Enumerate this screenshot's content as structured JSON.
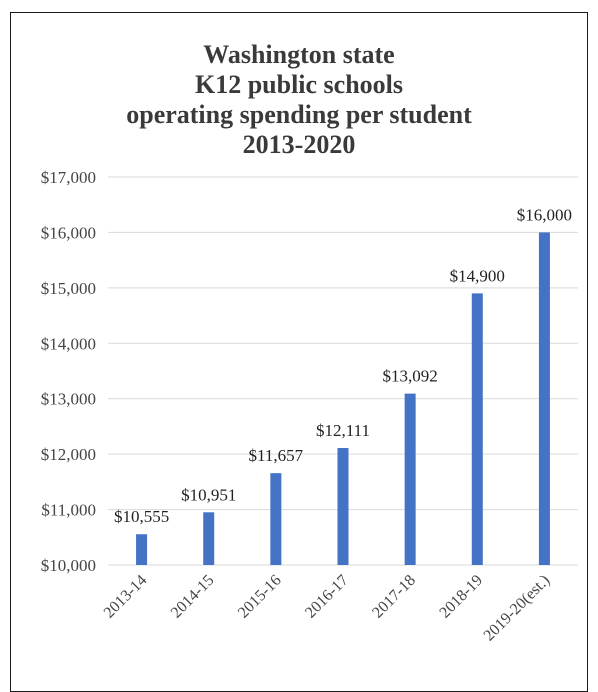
{
  "chart_data": {
    "type": "bar",
    "title_lines": [
      "Washington state",
      "K12 public schools",
      "operating spending per student",
      "2013-2020"
    ],
    "categories": [
      "2013-14",
      "2014-15",
      "2015-16",
      "2016-17",
      "2017-18",
      "2018-19",
      "2019-20(est.)"
    ],
    "values": [
      10555,
      10951,
      11657,
      12111,
      13092,
      14900,
      16000
    ],
    "data_labels": [
      "$10,555",
      "$10,951",
      "$11,657",
      "$12,111",
      "$13,092",
      "$14,900",
      "$16,000"
    ],
    "y_ticks": [
      10000,
      11000,
      12000,
      13000,
      14000,
      15000,
      16000,
      17000
    ],
    "y_tick_labels": [
      "$10,000",
      "$11,000",
      "$12,000",
      "$13,000",
      "$14,000",
      "$15,000",
      "$16,000",
      "$17,000"
    ],
    "ylim": [
      10000,
      17000
    ],
    "grid": true,
    "bar_color": "#4472c4",
    "grid_color": "#d9d9d9"
  }
}
